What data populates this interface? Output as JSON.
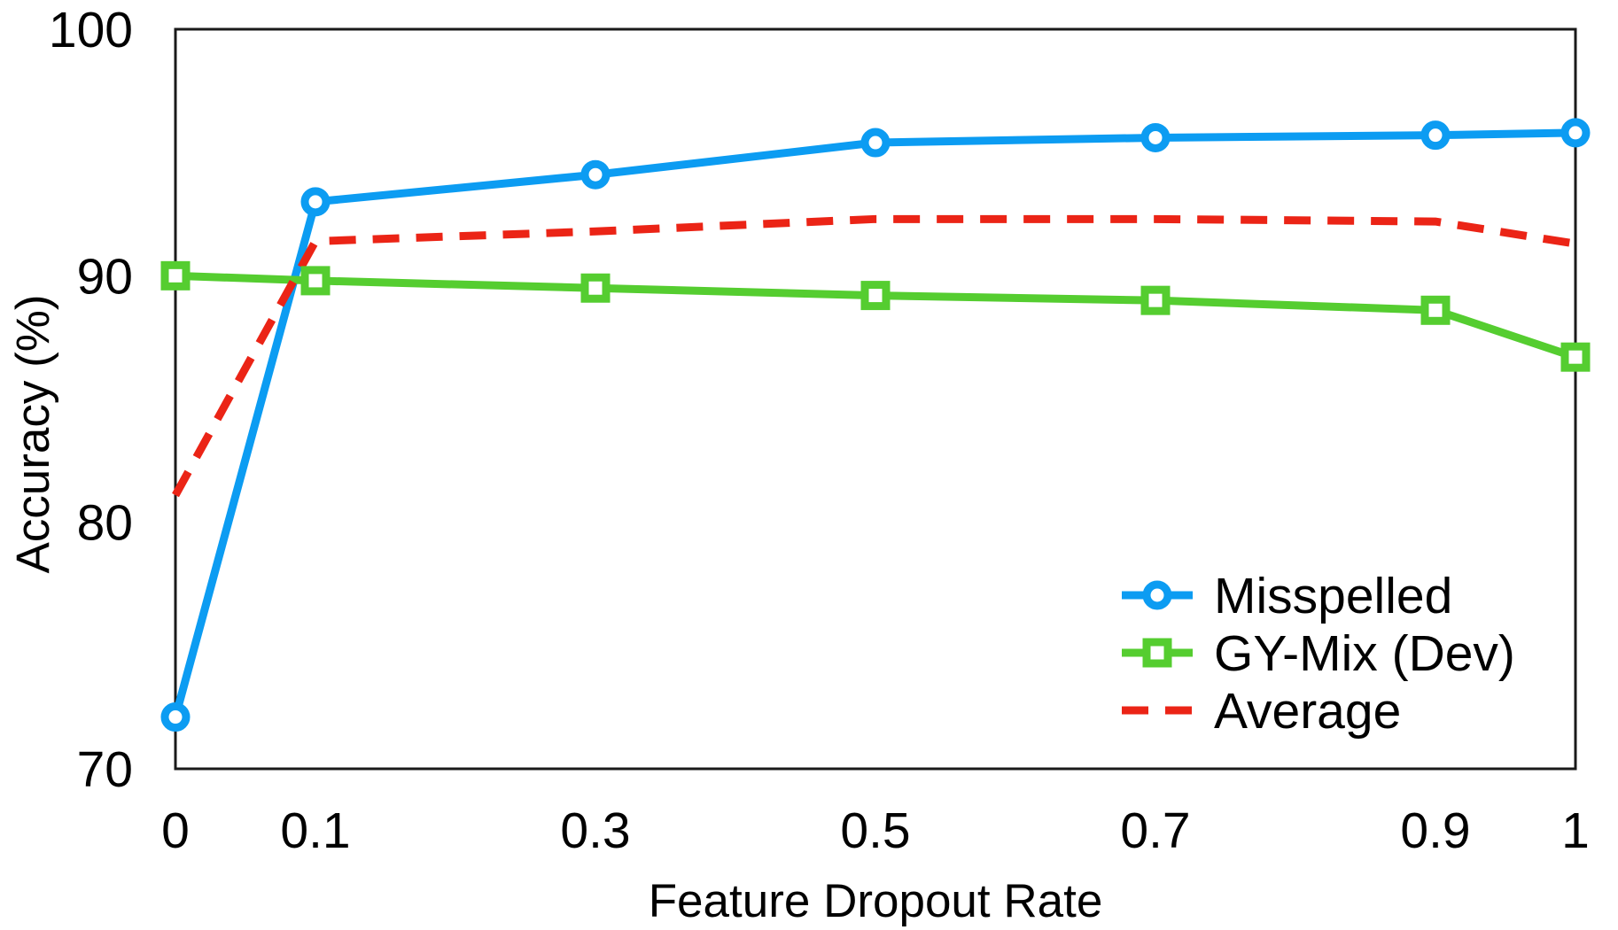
{
  "chart_data": {
    "type": "line",
    "title": "",
    "xlabel": "Feature Dropout Rate",
    "ylabel": "Accuracy (%)",
    "x": [
      0,
      0.1,
      0.3,
      0.5,
      0.7,
      0.9,
      1
    ],
    "x_tick_labels": [
      "0",
      "0.1",
      "0.3",
      "0.5",
      "0.7",
      "0.9",
      "1"
    ],
    "y_ticks": [
      70,
      80,
      90,
      100
    ],
    "y_tick_labels": [
      "70",
      "80",
      "90",
      "100"
    ],
    "xlim": [
      0,
      1
    ],
    "ylim": [
      70,
      100
    ],
    "grid": false,
    "legend_position": "lower-right",
    "frame_color": "#1a1a1a",
    "series": [
      {
        "name": "Misspelled",
        "color": "#0c9cf2",
        "marker": "circle",
        "line_style": "solid",
        "values": [
          72.1,
          93.0,
          94.1,
          95.4,
          95.6,
          95.7,
          95.8
        ]
      },
      {
        "name": "GY-Mix (Dev)",
        "color": "#55cd30",
        "marker": "square",
        "line_style": "solid",
        "values": [
          90.0,
          89.8,
          89.5,
          89.2,
          89.0,
          88.6,
          86.7
        ]
      },
      {
        "name": "Average",
        "color": "#eb2416",
        "marker": "none",
        "line_style": "dashed",
        "values": [
          81.1,
          91.4,
          91.8,
          92.3,
          92.3,
          92.2,
          91.3
        ]
      }
    ]
  }
}
